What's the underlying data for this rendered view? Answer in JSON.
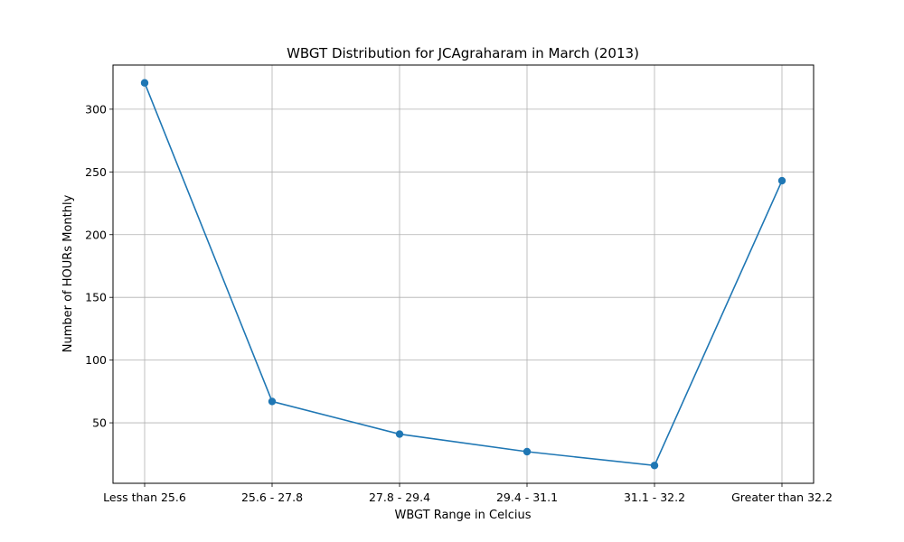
{
  "chart_data": {
    "type": "line",
    "title": "WBGT Distribution for JCAgraharam in March (2013)",
    "xlabel": "WBGT Range in Celcius",
    "ylabel": "Number of HOURs Monthly",
    "categories": [
      "Less than 25.6",
      "25.6 - 27.8",
      "27.8 - 29.4",
      "29.4 - 31.1",
      "31.1 - 32.2",
      "Greater than 32.2"
    ],
    "series": [
      {
        "values": [
          321,
          67,
          41,
          27,
          16,
          243
        ]
      }
    ],
    "ylim": [
      1.8,
      335.2
    ],
    "yticks": [
      50,
      100,
      150,
      200,
      250,
      300
    ],
    "grid": true,
    "line_color": "#1f77b4"
  }
}
